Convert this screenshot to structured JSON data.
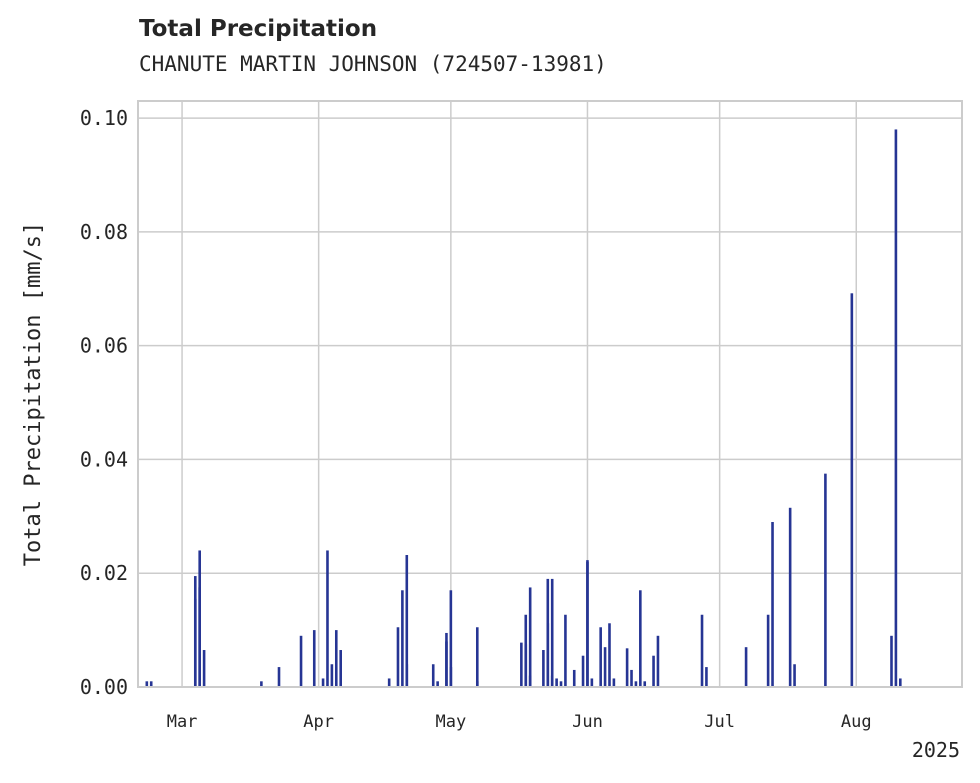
{
  "chart_data": {
    "type": "bar",
    "title": "Total Precipitation",
    "subtitle": "CHANUTE MARTIN JOHNSON (724507-13981)",
    "xlabel": "",
    "ylabel": "Total Precipitation [mm/s]",
    "ylim": [
      0,
      0.103
    ],
    "xlim": [
      "2025-02-19",
      "2025-08-25"
    ],
    "yticks": [
      "0.00",
      "0.02",
      "0.04",
      "0.06",
      "0.08",
      "0.10"
    ],
    "xticks": [
      {
        "date": "2025-03-01",
        "label": "Mar"
      },
      {
        "date": "2025-04-01",
        "label": "Apr"
      },
      {
        "date": "2025-05-01",
        "label": "May"
      },
      {
        "date": "2025-06-01",
        "label": "Jun"
      },
      {
        "date": "2025-07-01",
        "label": "Jul"
      },
      {
        "date": "2025-08-01",
        "label": "Aug"
      }
    ],
    "year_label": "2025",
    "grid": true,
    "bar_color": "#263594",
    "grid_color": "#cccccc",
    "series": [
      {
        "x": [
          "2025-02-21",
          "2025-02-22",
          "2025-03-04",
          "2025-03-04",
          "2025-03-05",
          "2025-03-05",
          "2025-03-06",
          "2025-03-19",
          "2025-03-23",
          "2025-03-28",
          "2025-03-31",
          "2025-04-02",
          "2025-04-03",
          "2025-04-04",
          "2025-04-05",
          "2025-04-06",
          "2025-04-17",
          "2025-04-19",
          "2025-04-20",
          "2025-04-21",
          "2025-04-21",
          "2025-04-27",
          "2025-04-28",
          "2025-04-30",
          "2025-04-30",
          "2025-05-01",
          "2025-05-01",
          "2025-05-07",
          "2025-05-07",
          "2025-05-17",
          "2025-05-18",
          "2025-05-18",
          "2025-05-19",
          "2025-05-19",
          "2025-05-22",
          "2025-05-23",
          "2025-05-23",
          "2025-05-24",
          "2025-05-24",
          "2025-05-25",
          "2025-05-26",
          "2025-05-27",
          "2025-05-29",
          "2025-05-31",
          "2025-06-01",
          "2025-06-01",
          "2025-06-02",
          "2025-06-04",
          "2025-06-05",
          "2025-06-06",
          "2025-06-07",
          "2025-06-10",
          "2025-06-11",
          "2025-06-12",
          "2025-06-13",
          "2025-06-14",
          "2025-06-16",
          "2025-06-17",
          "2025-06-27",
          "2025-06-28",
          "2025-07-07",
          "2025-07-12",
          "2025-07-13",
          "2025-07-17",
          "2025-07-18",
          "2025-07-25",
          "2025-07-31",
          "2025-08-09",
          "2025-08-10",
          "2025-08-11"
        ],
        "values": [
          0.001,
          0.001,
          0.0155,
          0.0195,
          0.024,
          0.0175,
          0.0065,
          0.001,
          0.0035,
          0.009,
          0.01,
          0.0015,
          0.024,
          0.004,
          0.01,
          0.0065,
          0.0015,
          0.0105,
          0.017,
          0.0232,
          0.004,
          0.004,
          0.001,
          0.008,
          0.0095,
          0.017,
          0.0035,
          0.0105,
          0.001,
          0.0078,
          0.0127,
          0.0075,
          0.0175,
          0.002,
          0.0065,
          0.019,
          0.0112,
          0.019,
          0.002,
          0.0015,
          0.001,
          0.0127,
          0.003,
          0.0055,
          0.0223,
          0.022,
          0.0015,
          0.0105,
          0.007,
          0.0112,
          0.0015,
          0.0068,
          0.003,
          0.001,
          0.017,
          0.001,
          0.0055,
          0.009,
          0.0127,
          0.0035,
          0.007,
          0.0127,
          0.029,
          0.0315,
          0.004,
          0.0375,
          0.0692,
          0.009,
          0.098,
          0.0015
        ]
      }
    ]
  }
}
